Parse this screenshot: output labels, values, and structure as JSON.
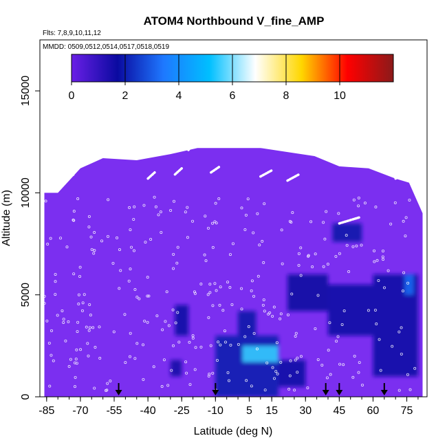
{
  "chart_data": {
    "type": "heatmap",
    "title": "ATOM4 Northbound V_fine_AMP",
    "flights_note": "Flts: 7,8,9,10,11,12",
    "dates_note": "MMDD: 0509,0512,0514,0517,0518,0519",
    "xlabel": "Latitude (deg N)",
    "ylabel": "Altitude (m)",
    "xlim": [
      -88,
      84
    ],
    "ylim": [
      0,
      17500
    ],
    "x_ticks": [
      -85,
      -70,
      -55,
      -40,
      -25,
      -10,
      5,
      15,
      30,
      45,
      60,
      75
    ],
    "x_tick_labels": [
      "-85",
      "-70",
      "-55",
      "-40",
      "-25",
      "-10",
      "5",
      "15",
      "30",
      "45",
      "60",
      "75"
    ],
    "y_ticks": [
      0,
      5000,
      10000,
      15000
    ],
    "y_tick_labels": [
      "0",
      "5000",
      "10000",
      "15000"
    ],
    "colorbar": {
      "range": [
        0,
        12
      ],
      "ticks": [
        0,
        2,
        4,
        6,
        8,
        10
      ],
      "tick_labels": [
        "0",
        "2",
        "4",
        "6",
        "8",
        "10"
      ],
      "colors": [
        "#6a1fe6",
        "#0a0aa0",
        "#1e78ff",
        "#00bfff",
        "#ffffff",
        "#ffd700",
        "#ff0000",
        "#8b1a1a"
      ]
    },
    "field": {
      "background_value": 0.3,
      "background_color": "#7b2ff0",
      "enhanced_regions": [
        {
          "lat": [
            -28,
            -22
          ],
          "alt": [
            3000,
            4500
          ],
          "value": 1.6
        },
        {
          "lat": [
            -30,
            -25
          ],
          "alt": [
            1000,
            1800
          ],
          "value": 1.5
        },
        {
          "lat": [
            -10,
            18
          ],
          "alt": [
            0,
            3000
          ],
          "value": 2.0
        },
        {
          "lat": [
            18,
            30
          ],
          "alt": [
            500,
            1800
          ],
          "value": 1.8
        },
        {
          "lat": [
            0,
            8
          ],
          "alt": [
            3000,
            4200
          ],
          "value": 1.9
        },
        {
          "lat": [
            2,
            18
          ],
          "alt": [
            1700,
            2500
          ],
          "value": 5.5
        },
        {
          "lat": [
            22,
            40
          ],
          "alt": [
            4200,
            6000
          ],
          "value": 1.7
        },
        {
          "lat": [
            40,
            60
          ],
          "alt": [
            3000,
            5500
          ],
          "value": 1.8
        },
        {
          "lat": [
            42,
            55
          ],
          "alt": [
            7600,
            8500
          ],
          "value": 1.9
        },
        {
          "lat": [
            60,
            80
          ],
          "alt": [
            1000,
            6000
          ],
          "value": 1.6
        },
        {
          "lat": [
            74,
            78
          ],
          "alt": [
            5000,
            6000
          ],
          "value": 3.2
        }
      ]
    },
    "descent_markers_lat": [
      -53,
      -10,
      39,
      45,
      65
    ]
  }
}
